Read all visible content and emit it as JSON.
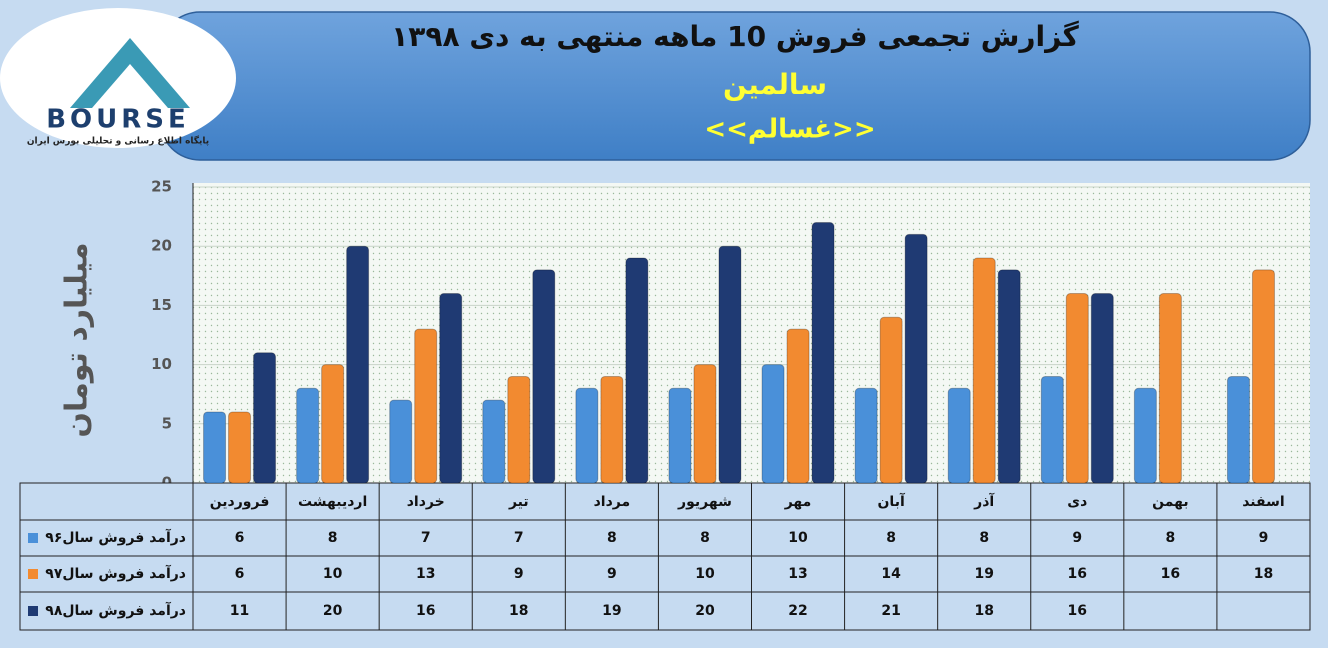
{
  "logo": {
    "text": "BOURSE",
    "subtitle": "پایگاه اطلاع رسانی و تحلیلی بورس ایران"
  },
  "chart_data": {
    "type": "bar",
    "title": "گزارش تجمعی فروش  10 ماهه منتهی به دی ۱۳۹۸",
    "subtitle": "سالمین",
    "annotation": "<<غسالم>>",
    "y_label": "میلیارد تومان",
    "categories": [
      "فروردین",
      "اردیبهشت",
      "خرداد",
      "تیر",
      "مرداد",
      "شهریور",
      "مهر",
      "آبان",
      "آذر",
      "دی",
      "بهمن",
      "اسفند"
    ],
    "series": [
      {
        "name": "درآمد فروش سال۹۶",
        "color": "#4a90d9",
        "values": [
          6,
          8,
          7,
          7,
          8,
          8,
          10,
          8,
          8,
          9,
          8,
          9
        ]
      },
      {
        "name": "درآمد فروش سال۹۷",
        "color": "#f28a30",
        "values": [
          6,
          10,
          13,
          9,
          9,
          10,
          13,
          14,
          19,
          16,
          16,
          18
        ]
      },
      {
        "name": "درآمد فروش سال۹۸",
        "color": "#1f3a73",
        "values": [
          11,
          20,
          16,
          18,
          19,
          20,
          22,
          21,
          18,
          16,
          null,
          null
        ]
      }
    ],
    "ylim": [
      0,
      25
    ],
    "yticks": [
      0,
      5,
      10,
      15,
      20,
      25
    ],
    "grid": true
  }
}
